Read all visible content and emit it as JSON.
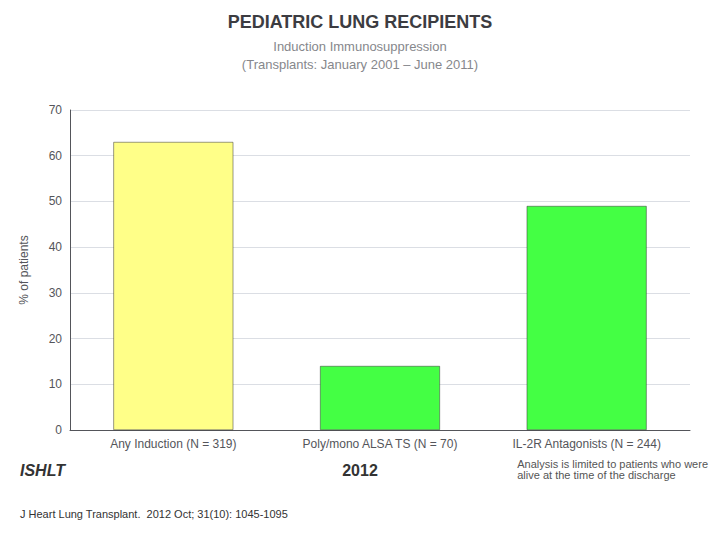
{
  "chart_data": {
    "type": "bar",
    "title": "PEDIATRIC LUNG RECIPIENTS",
    "subtitle": "Induction Immunosuppression\n(Transplants: January 2001 – June 2011)",
    "categories": [
      "Any Induction (N = 319)",
      "Poly/mono ALSA TS (N = 70)",
      "IL-2R Antagonists (N = 244)"
    ],
    "values": [
      63,
      14,
      49
    ],
    "colors": [
      "#ffff88",
      "#44ff44",
      "#44ff44"
    ],
    "ylabel": "% of patients",
    "ylim": [
      0,
      70
    ],
    "yticks": [
      0,
      10,
      20,
      30,
      40,
      50,
      60,
      70
    ],
    "grid": true,
    "annotations": [
      "ISHLT",
      "2012",
      "Analysis is limited to patients who were\nalive at the time of the discharge",
      "J Heart Lung Transplant.  2012 Oct; 31(10): 1045-1095"
    ]
  }
}
